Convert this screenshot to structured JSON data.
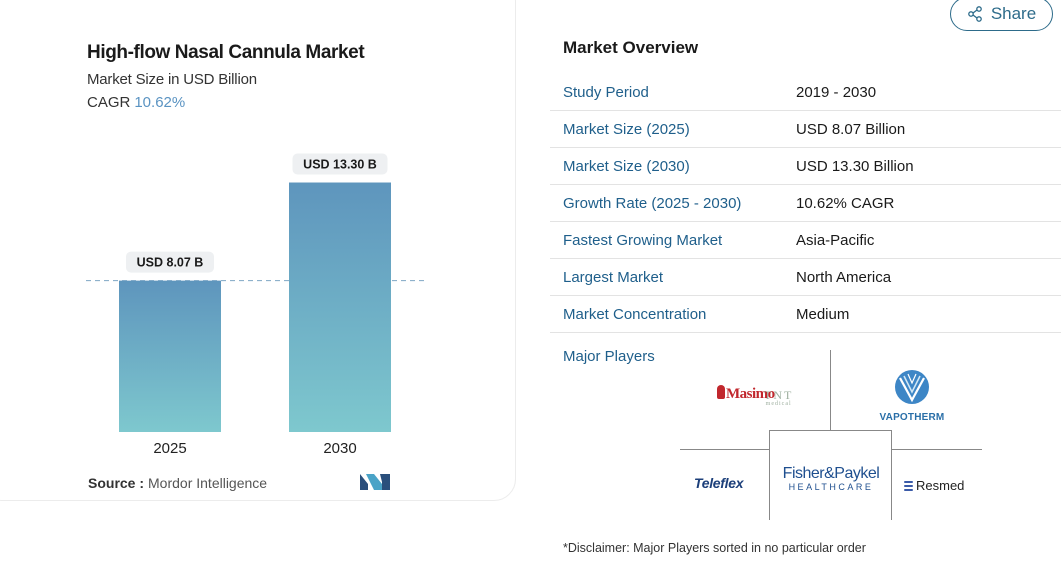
{
  "chart": {
    "title": "High-flow Nasal Cannula Market",
    "subtitle": "Market Size in USD Billion",
    "cagr_label": "CAGR",
    "cagr_value": "10.62%",
    "source_label": "Source :",
    "source_name": "Mordor Intelligence"
  },
  "chart_data": {
    "type": "bar",
    "categories": [
      "2025",
      "2030"
    ],
    "values": [
      8.07,
      13.3
    ],
    "data_labels": [
      "USD 8.07 B",
      "USD 13.30 B"
    ],
    "title": "High-flow Nasal Cannula Market",
    "subtitle": "Market Size in USD Billion",
    "ylim": [
      0,
      14.5
    ],
    "reference_line": 8.07,
    "grid": false,
    "colors": {
      "bar_top": "#5e95bd",
      "bar_bottom": "#7ec8ce",
      "label_bg": "#eef0f2",
      "dashed_line": "#7fa6c4"
    }
  },
  "share": {
    "label": "Share",
    "icon": "share-icon",
    "color": "#2d6b8a"
  },
  "overview": {
    "title": "Market Overview",
    "rows": [
      {
        "label": "Study Period",
        "value": "2019 - 2030"
      },
      {
        "label": "Market Size (2025)",
        "value": "USD 8.07 Billion"
      },
      {
        "label": "Market Size (2030)",
        "value": "USD 13.30 Billion"
      },
      {
        "label": "Growth Rate (2025 - 2030)",
        "value": "10.62% CAGR"
      },
      {
        "label": "Fastest Growing Market",
        "value": "Asia-Pacific"
      },
      {
        "label": "Largest Market",
        "value": "North America"
      },
      {
        "label": "Market Concentration",
        "value": "Medium"
      }
    ],
    "label_color": "#1f5f8b"
  },
  "players": {
    "label": "Major Players",
    "logos": {
      "masimo": "Masimo",
      "tnt": "TNT",
      "tnt_sub": "medical",
      "vapotherm": "VAPOTHERM",
      "teleflex": "Teleflex",
      "fp_main": "Fisher&Paykel",
      "fp_sub": "HEALTHCARE",
      "resmed": "Resmed"
    }
  },
  "disclaimer": "*Disclaimer: Major Players sorted in no particular order"
}
